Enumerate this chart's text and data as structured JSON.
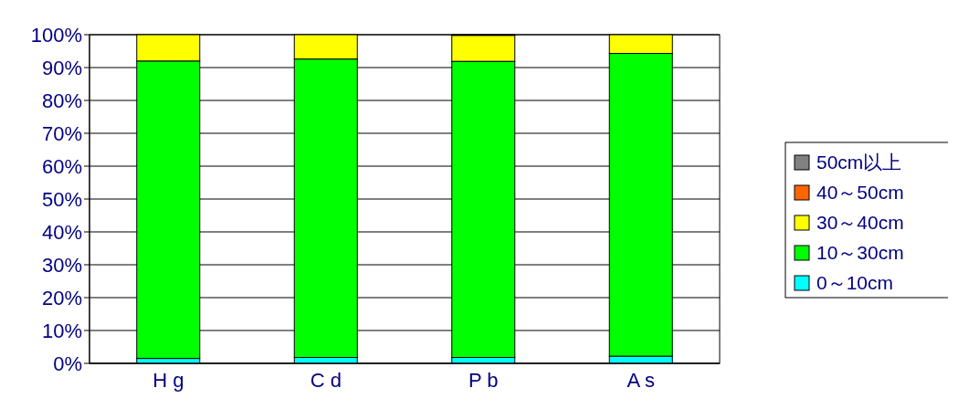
{
  "chart_data": {
    "type": "bar",
    "stacked": true,
    "categories": [
      "H g",
      "C d",
      "P b",
      "A s"
    ],
    "series": [
      {
        "name": "0～10cm",
        "color": "#00ffff",
        "values": [
          1.5,
          1.8,
          1.8,
          2.2
        ]
      },
      {
        "name": "10～30cm",
        "color": "#00ff00",
        "values": [
          90.5,
          90.8,
          90.1,
          92.1
        ]
      },
      {
        "name": "30～40cm",
        "color": "#ffff00",
        "values": [
          8,
          7.4,
          7.9,
          5.7
        ]
      },
      {
        "name": "40～50cm",
        "color": "#ff6600",
        "values": [
          0,
          0,
          0.2,
          0
        ]
      },
      {
        "name": "50cm以上",
        "color": "#808080",
        "values": [
          0,
          0,
          0,
          0
        ]
      }
    ],
    "ylim": [
      0,
      100
    ],
    "yticks": [
      {
        "value": 0,
        "label": "0%"
      },
      {
        "value": 10,
        "label": "10%"
      },
      {
        "value": 20,
        "label": "20%"
      },
      {
        "value": 30,
        "label": "30%"
      },
      {
        "value": 40,
        "label": "40%"
      },
      {
        "value": 50,
        "label": "50%"
      },
      {
        "value": 60,
        "label": "60%"
      },
      {
        "value": 70,
        "label": "70%"
      },
      {
        "value": 80,
        "label": "80%"
      },
      {
        "value": 90,
        "label": "90%"
      },
      {
        "value": 100,
        "label": "100%"
      }
    ],
    "grid": true,
    "legend": "right"
  }
}
